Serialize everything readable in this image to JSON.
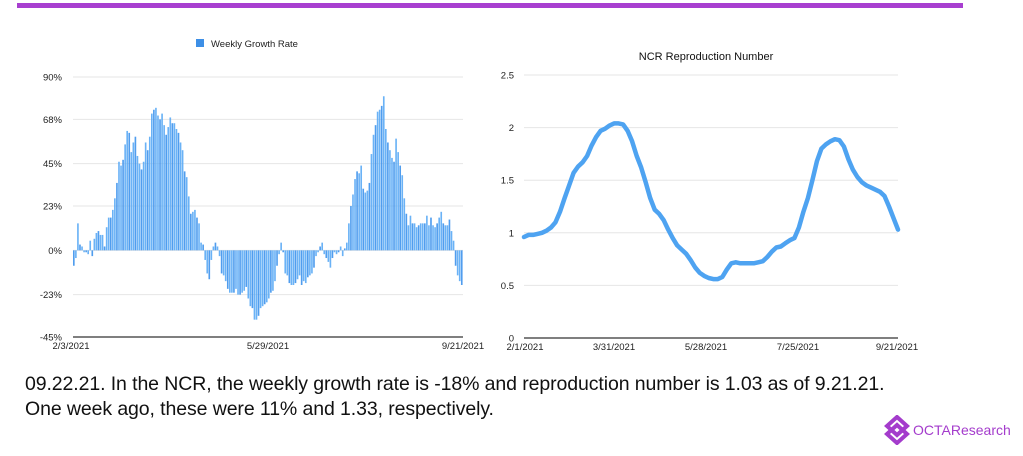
{
  "colors": {
    "accent_bar": "#a83fd0",
    "bar_fill": "#5aaaf5",
    "bar_fill_alt": "#3d92ec",
    "line_color": "#4ea3f1",
    "logo": "#a43ccc"
  },
  "caption": {
    "line1": "09.22.21. In the NCR, the weekly growth rate is -18% and reproduction number is 1.03 as of 9.21.21.",
    "line2": "One week ago, these were 11% and 1.33, respectively."
  },
  "logo": {
    "text": "OCTAResearch",
    "icon": "octa-diamond-logo-icon"
  },
  "chart_data": [
    {
      "type": "bar",
      "title": "",
      "legend": [
        "Weekly Growth Rate"
      ],
      "legend_position": "top-center",
      "xlabel": "",
      "ylabel": "",
      "ylim": [
        -45,
        90
      ],
      "yticks": [
        "90%",
        "68%",
        "45%",
        "23%",
        "0%",
        "-23%",
        "-45%"
      ],
      "ytick_values": [
        90,
        68,
        45,
        23,
        0,
        -23,
        -45
      ],
      "xticks": [
        "2/3/2021",
        "5/29/2021",
        "9/21/2021"
      ],
      "x_start": "2/3/2021",
      "x_end": "9/21/2021",
      "grid": true,
      "series": [
        {
          "name": "Weekly Growth Rate",
          "unit": "%",
          "values": [
            -8,
            -4,
            14,
            3,
            2,
            -1,
            -1,
            -2,
            5,
            -3,
            6,
            9,
            10,
            8,
            8,
            2,
            12,
            17,
            17,
            21,
            27,
            35,
            46,
            44,
            47,
            55,
            62,
            61,
            51,
            56,
            59,
            49,
            45,
            42,
            46,
            56,
            52,
            59,
            71,
            73,
            74,
            70,
            68,
            71,
            65,
            60,
            64,
            69,
            66,
            66,
            63,
            61,
            56,
            52,
            41,
            38,
            28,
            19,
            20,
            21,
            17,
            14,
            4,
            3,
            -5,
            -12,
            -15,
            -5,
            2,
            4,
            2,
            -3,
            -12,
            -13,
            -16,
            -20,
            -22,
            -22,
            -22,
            -20,
            -23,
            -23,
            -22,
            -21,
            -19,
            -25,
            -29,
            -30,
            -36,
            -36,
            -34,
            -30,
            -29,
            -28,
            -27,
            -25,
            -22,
            -21,
            -16,
            -8,
            -2,
            4,
            -1,
            -12,
            -13,
            -17,
            -18,
            -18,
            -17,
            -15,
            -13,
            -18,
            -16,
            -17,
            -14,
            -13,
            -12,
            -9,
            -3,
            -1,
            2,
            4,
            -2,
            -4,
            -6,
            -9,
            -4,
            -1,
            -2,
            -1,
            2,
            -3,
            1,
            4,
            14,
            23,
            29,
            37,
            41,
            40,
            44,
            32,
            30,
            31,
            35,
            50,
            60,
            65,
            72,
            73,
            75,
            80,
            63,
            56,
            52,
            48,
            46,
            58,
            51,
            44,
            39,
            27,
            19,
            13,
            18,
            14,
            14,
            12,
            13,
            14,
            14,
            14,
            18,
            13,
            17,
            13,
            12,
            14,
            17,
            20,
            14,
            13,
            13,
            16,
            10,
            5,
            -8,
            -13,
            -16,
            -18
          ]
        }
      ]
    },
    {
      "type": "line",
      "title": "NCR Reproduction Number",
      "xlabel": "",
      "ylabel": "",
      "ylim": [
        0,
        2.5
      ],
      "yticks": [
        "2.5",
        "2",
        "1.5",
        "1",
        "0.5",
        "0"
      ],
      "ytick_values": [
        2.5,
        2,
        1.5,
        1,
        0.5,
        0
      ],
      "xticks": [
        "2/1/2021",
        "3/31/2021",
        "5/28/2021",
        "7/25/2021",
        "9/21/2021"
      ],
      "x_start": "2/1/2021",
      "x_end": "9/21/2021",
      "grid": true,
      "series": [
        {
          "name": "NCR Reproduction Number",
          "values": [
            0.96,
            0.98,
            0.98,
            0.99,
            1.0,
            1.02,
            1.05,
            1.1,
            1.2,
            1.33,
            1.45,
            1.57,
            1.63,
            1.67,
            1.73,
            1.83,
            1.91,
            1.97,
            1.99,
            2.02,
            2.04,
            2.04,
            2.03,
            1.97,
            1.87,
            1.73,
            1.62,
            1.48,
            1.33,
            1.22,
            1.18,
            1.12,
            1.03,
            0.95,
            0.88,
            0.84,
            0.8,
            0.74,
            0.67,
            0.62,
            0.59,
            0.57,
            0.56,
            0.56,
            0.58,
            0.65,
            0.71,
            0.72,
            0.71,
            0.71,
            0.71,
            0.71,
            0.72,
            0.73,
            0.77,
            0.82,
            0.86,
            0.87,
            0.9,
            0.93,
            0.95,
            1.05,
            1.2,
            1.33,
            1.5,
            1.68,
            1.8,
            1.84,
            1.87,
            1.89,
            1.88,
            1.82,
            1.7,
            1.6,
            1.53,
            1.48,
            1.45,
            1.43,
            1.41,
            1.39,
            1.35,
            1.25,
            1.14,
            1.03
          ]
        }
      ]
    }
  ]
}
